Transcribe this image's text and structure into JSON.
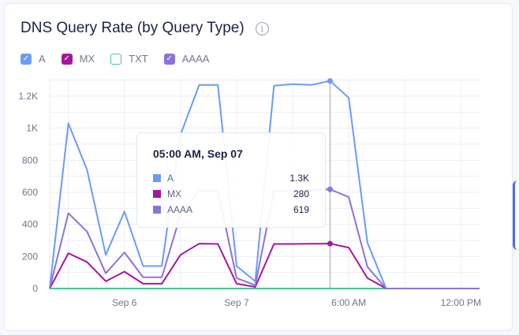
{
  "title": "DNS Query Rate (by Query Type)",
  "legend": [
    {
      "label": "A",
      "color": "#6b9bf7",
      "checked": true
    },
    {
      "label": "MX",
      "color": "#a5169e",
      "checked": true
    },
    {
      "label": "TXT",
      "color": "#3fcf8e",
      "checked": false
    },
    {
      "label": "AAAA",
      "color": "#8b73d9",
      "checked": true
    }
  ],
  "tooltip": {
    "title": "05:00 AM, Sep 07",
    "rows": [
      {
        "label": "A",
        "value": "1.3K",
        "color": "#6b9bf7"
      },
      {
        "label": "MX",
        "value": "280",
        "color": "#a5169e"
      },
      {
        "label": "AAAA",
        "value": "619",
        "color": "#8b73d9"
      }
    ]
  },
  "chart_data": {
    "type": "line",
    "title": "DNS Query Rate (by Query Type)",
    "ylim": [
      0,
      1300
    ],
    "yticks": [
      {
        "v": 0,
        "label": "0"
      },
      {
        "v": 200,
        "label": "200"
      },
      {
        "v": 400,
        "label": "400"
      },
      {
        "v": 600,
        "label": "600"
      },
      {
        "v": 800,
        "label": "800"
      },
      {
        "v": 1000,
        "label": "1K"
      },
      {
        "v": 1200,
        "label": "1.2K"
      }
    ],
    "xticks": [
      {
        "i": 4,
        "label": "Sep 6"
      },
      {
        "i": 10,
        "label": "Sep 7"
      },
      {
        "i": 16,
        "label": "6:00 AM"
      },
      {
        "i": 22,
        "label": "12:00 PM"
      }
    ],
    "grid": true,
    "hover_index": 15,
    "series": [
      {
        "name": "A",
        "color": "#6b9bf7",
        "values": [
          0,
          1030,
          740,
          210,
          480,
          140,
          140,
          960,
          1270,
          1270,
          140,
          45,
          1265,
          1275,
          1270,
          1295,
          1190,
          285,
          0,
          0,
          0,
          0,
          0,
          0
        ]
      },
      {
        "name": "MX",
        "color": "#a5169e",
        "values": [
          0,
          220,
          165,
          45,
          105,
          30,
          30,
          210,
          280,
          278,
          30,
          10,
          278,
          278,
          279,
          280,
          255,
          65,
          0,
          0,
          0,
          0,
          0,
          0
        ]
      },
      {
        "name": "TXT",
        "color": "#3fcf8e",
        "values": [
          0,
          0,
          0,
          0,
          0,
          0,
          0,
          0,
          0,
          0,
          0,
          0,
          0,
          0,
          0,
          0,
          0,
          0,
          0,
          0,
          0,
          0,
          0,
          0
        ]
      },
      {
        "name": "AAAA",
        "color": "#8b73d9",
        "values": [
          0,
          470,
          355,
          95,
          225,
          70,
          70,
          460,
          610,
          610,
          65,
          20,
          608,
          610,
          612,
          619,
          570,
          135,
          0,
          0,
          0,
          0,
          0,
          0
        ]
      }
    ]
  }
}
